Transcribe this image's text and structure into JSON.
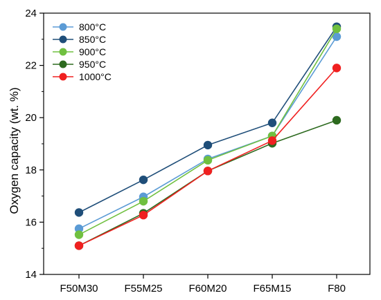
{
  "chart_data": {
    "type": "line",
    "title": "",
    "xlabel": "",
    "ylabel": "Oxygen capacity (wt. %)",
    "categories": [
      "F50M30",
      "F55M25",
      "F60M20",
      "F65M15",
      "F80"
    ],
    "ylim": [
      14,
      24
    ],
    "yticks": [
      14,
      16,
      18,
      20,
      22,
      24
    ],
    "grid": false,
    "legend_position": "top-left",
    "series": [
      {
        "name": "800°C",
        "color": "#5b9bd5",
        "values": [
          15.75,
          16.97,
          18.42,
          19.3,
          23.1
        ]
      },
      {
        "name": "850°C",
        "color": "#1f4e79",
        "values": [
          16.37,
          17.62,
          18.95,
          19.8,
          23.48
        ]
      },
      {
        "name": "900°C",
        "color": "#70c040",
        "values": [
          15.52,
          16.8,
          18.37,
          19.3,
          23.4
        ]
      },
      {
        "name": "950°C",
        "color": "#2d6a1f",
        "values": [
          15.1,
          16.34,
          17.96,
          19.02,
          19.9
        ]
      },
      {
        "name": "1000°C",
        "color": "#f02020",
        "values": [
          15.1,
          16.27,
          17.96,
          19.12,
          21.9
        ]
      }
    ]
  }
}
